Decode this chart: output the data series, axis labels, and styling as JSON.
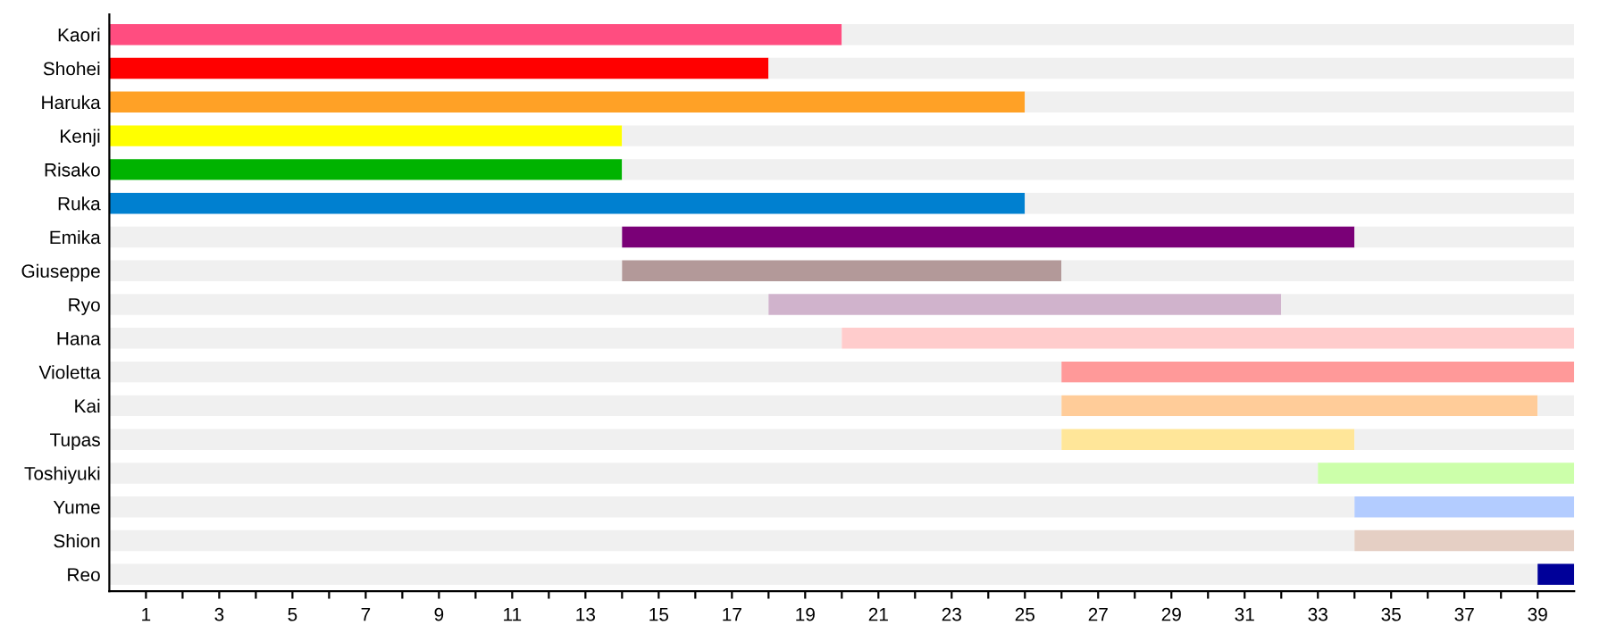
{
  "chart_data": {
    "type": "bar",
    "orientation": "horizontal",
    "categories": [
      "Kaori",
      "Shohei",
      "Haruka",
      "Kenji",
      "Risako",
      "Ruka",
      "Emika",
      "Giuseppe",
      "Ryo",
      "Hana",
      "Violetta",
      "Kai",
      "Tupas",
      "Toshiyuki",
      "Yume",
      "Shion",
      "Reo"
    ],
    "stacked": true,
    "series": [
      {
        "color": "#f0f0f0",
        "values": [
          null,
          null,
          null,
          null,
          null,
          null,
          14,
          14,
          18,
          20,
          26,
          26,
          26,
          33,
          34,
          34,
          39
        ]
      },
      {
        "colors": [
          "#ff4d80",
          "#ff0000",
          "#ffa126",
          "#ffff00",
          "#00b300",
          "#0080d0",
          "#7a0077",
          "#b39999",
          "#d0b3cc",
          "#ffcccc",
          "#ff9999",
          "#ffcc99",
          "#ffe699",
          "#ccffaa",
          "#b3ccff",
          "#e5cfc4",
          "#000099"
        ],
        "values": [
          20,
          18,
          25,
          14,
          14,
          25,
          20,
          12,
          14,
          20,
          14,
          13,
          8,
          7,
          6,
          6,
          1
        ]
      },
      {
        "color": "#f0f0f0",
        "values": [
          20,
          22,
          15,
          26,
          26,
          15,
          6,
          14,
          8,
          null,
          null,
          1,
          6,
          null,
          null,
          null,
          null
        ]
      }
    ],
    "xlim": [
      0,
      40
    ],
    "xticks": [
      1,
      {
        "value": 2,
        "label": null
      },
      3,
      {
        "value": 4,
        "label": null
      },
      5,
      {
        "value": 6,
        "label": null
      },
      7,
      {
        "value": 8,
        "label": null
      },
      9,
      {
        "value": 10,
        "label": null
      },
      11,
      {
        "value": 12,
        "label": null
      },
      13,
      {
        "value": 14,
        "label": null
      },
      15,
      {
        "value": 16,
        "label": null
      },
      17,
      {
        "value": 18,
        "label": null
      },
      19,
      {
        "value": 20,
        "label": null
      },
      21,
      {
        "value": 22,
        "label": null
      },
      23,
      {
        "value": 24,
        "label": null
      },
      25,
      {
        "value": 26,
        "label": null
      },
      27,
      {
        "value": 28,
        "label": null
      },
      29,
      {
        "value": 30,
        "label": null
      },
      31,
      {
        "value": 32,
        "label": null
      },
      33,
      {
        "value": 34,
        "label": null
      },
      35,
      {
        "value": 36,
        "label": null
      },
      37,
      {
        "value": 38,
        "label": null
      },
      39
    ],
    "grid": false,
    "legend": false
  }
}
